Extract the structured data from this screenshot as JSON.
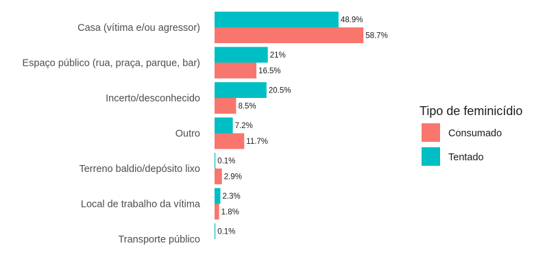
{
  "chart_data": {
    "type": "bar",
    "orientation": "horizontal",
    "categories": [
      "Casa (vítima e/ou agressor)",
      "Espaço público (rua, praça, parque, bar)",
      "Incerto/desconhecido",
      "Outro",
      "Terreno baldio/depósito lixo",
      "Local de trabalho da vítima",
      "Transporte público"
    ],
    "series": [
      {
        "name": "Tentado",
        "color": "#00BFC4",
        "values": [
          48.9,
          21,
          20.5,
          7.2,
          0.1,
          2.3,
          0.1
        ],
        "labels": [
          "48.9%",
          "21%",
          "20.5%",
          "7.2%",
          "0.1%",
          "2.3%",
          "0.1%"
        ]
      },
      {
        "name": "Consumado",
        "color": "#F8766D",
        "values": [
          58.7,
          16.5,
          8.5,
          11.7,
          2.9,
          1.8,
          null
        ],
        "labels": [
          "58.7%",
          "16.5%",
          "8.5%",
          "11.7%",
          "2.9%",
          "1.8%",
          ""
        ]
      }
    ],
    "legend": {
      "title": "Tipo de feminicídio",
      "position": "right",
      "entries": [
        {
          "label": "Consumado",
          "color": "#F8766D"
        },
        {
          "label": "Tentado",
          "color": "#00BFC4"
        }
      ]
    },
    "title": "",
    "xlabel": "",
    "ylabel": "",
    "xlim": [
      0,
      60
    ],
    "grid": false
  }
}
